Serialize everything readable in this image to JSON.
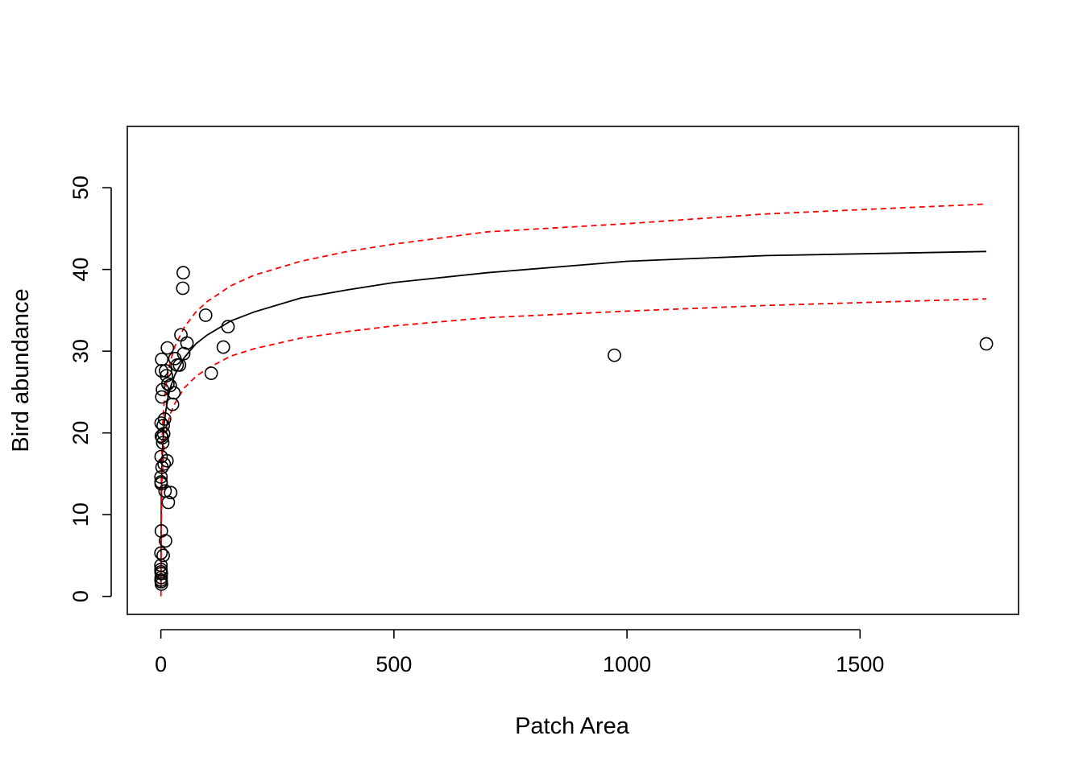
{
  "chart_data": {
    "type": "scatter",
    "title": "",
    "xlabel": "Patch Area",
    "ylabel": "Bird abundance",
    "xlim": [
      -72,
      1840
    ],
    "ylim": [
      -2.2,
      57.5
    ],
    "xticks": [
      0,
      500,
      1000,
      1500
    ],
    "xtick_labels": [
      "0",
      "500",
      "1000",
      "1500"
    ],
    "yticks": [
      0,
      10,
      20,
      30,
      40,
      50
    ],
    "ytick_labels": [
      "0",
      "10",
      "20",
      "30",
      "40",
      "50"
    ],
    "grid": false,
    "legend": "none",
    "colors": {
      "points": "#000000",
      "fit": "#000000",
      "ci": "#ff0000"
    },
    "points": [
      {
        "x": 1.5,
        "y": 27.6
      },
      {
        "x": 1.8,
        "y": 29.0
      },
      {
        "x": 2.0,
        "y": 24.4
      },
      {
        "x": 3.5,
        "y": 25.3
      },
      {
        "x": 0.5,
        "y": 21.2
      },
      {
        "x": 1.0,
        "y": 19.6
      },
      {
        "x": 3.0,
        "y": 19.4
      },
      {
        "x": 5.0,
        "y": 20.9
      },
      {
        "x": 6.0,
        "y": 19.9
      },
      {
        "x": 4.0,
        "y": 18.8
      },
      {
        "x": 8.0,
        "y": 21.7
      },
      {
        "x": 0.5,
        "y": 17.1
      },
      {
        "x": 2.5,
        "y": 15.8
      },
      {
        "x": 7.0,
        "y": 16.2
      },
      {
        "x": 0.2,
        "y": 14.6
      },
      {
        "x": 0.3,
        "y": 14.0
      },
      {
        "x": 0.5,
        "y": 13.8
      },
      {
        "x": 9.0,
        "y": 12.9
      },
      {
        "x": 13.0,
        "y": 16.6
      },
      {
        "x": 16.0,
        "y": 11.5
      },
      {
        "x": 21.0,
        "y": 12.7
      },
      {
        "x": 1.0,
        "y": 8.0
      },
      {
        "x": 10.0,
        "y": 6.8
      },
      {
        "x": 0.1,
        "y": 5.3
      },
      {
        "x": 5.0,
        "y": 5.0
      },
      {
        "x": 0.1,
        "y": 3.8
      },
      {
        "x": 0.2,
        "y": 3.3
      },
      {
        "x": 0.4,
        "y": 3.0
      },
      {
        "x": 1.0,
        "y": 2.8
      },
      {
        "x": 0.6,
        "y": 2.3
      },
      {
        "x": 0.3,
        "y": 2.0
      },
      {
        "x": 0.8,
        "y": 1.8
      },
      {
        "x": 1.2,
        "y": 1.5
      },
      {
        "x": 12.0,
        "y": 27.0
      },
      {
        "x": 10.0,
        "y": 27.6
      },
      {
        "x": 15.0,
        "y": 26.0
      },
      {
        "x": 20.0,
        "y": 25.8
      },
      {
        "x": 28.0,
        "y": 24.9
      },
      {
        "x": 25.0,
        "y": 23.5
      },
      {
        "x": 14.0,
        "y": 30.4
      },
      {
        "x": 30.0,
        "y": 29.1
      },
      {
        "x": 35.0,
        "y": 28.3
      },
      {
        "x": 40.0,
        "y": 28.3
      },
      {
        "x": 43.0,
        "y": 32.0
      },
      {
        "x": 49.0,
        "y": 29.7
      },
      {
        "x": 56.0,
        "y": 31.0
      },
      {
        "x": 48.0,
        "y": 39.6
      },
      {
        "x": 47.0,
        "y": 37.7
      },
      {
        "x": 96.0,
        "y": 34.4
      },
      {
        "x": 108.0,
        "y": 27.3
      },
      {
        "x": 134.0,
        "y": 30.5
      },
      {
        "x": 144.0,
        "y": 33.0
      },
      {
        "x": 973.0,
        "y": 29.5
      },
      {
        "x": 1771.0,
        "y": 30.9
      }
    ],
    "series": [
      {
        "style": "solid",
        "x": [
          0.1,
          0.5,
          1,
          2,
          4,
          7,
          10,
          15,
          20,
          30,
          50,
          75,
          100,
          150,
          200,
          300,
          400,
          500,
          700,
          1000,
          1300,
          1771
        ],
        "y": [
          1.0,
          8.6,
          11.9,
          15.2,
          18.5,
          21.1,
          22.5,
          24.2,
          25.5,
          27.1,
          29.2,
          30.9,
          32.0,
          33.7,
          34.8,
          36.5,
          37.5,
          38.4,
          39.6,
          41.0,
          41.7,
          42.2
        ]
      },
      {
        "style": "dashed",
        "x": [
          0.1,
          0.5,
          1,
          2,
          4,
          7,
          10,
          15,
          20,
          30,
          50,
          75,
          100,
          150,
          200,
          300,
          400,
          500,
          700,
          1000,
          1300,
          1771
        ],
        "y": [
          2.0,
          11.0,
          14.5,
          17.8,
          21.0,
          23.8,
          25.4,
          27.3,
          28.7,
          30.6,
          32.9,
          34.8,
          36.1,
          38.0,
          39.3,
          41.0,
          42.2,
          43.1,
          44.6,
          45.6,
          46.8,
          48.0
        ]
      },
      {
        "style": "dashed",
        "x": [
          0.1,
          0.5,
          1,
          2,
          4,
          7,
          10,
          15,
          20,
          30,
          50,
          75,
          100,
          150,
          200,
          300,
          400,
          500,
          700,
          1000,
          1300,
          1771
        ],
        "y": [
          0.0,
          6.2,
          9.3,
          12.6,
          16.0,
          18.4,
          19.6,
          21.1,
          22.3,
          23.6,
          25.5,
          26.9,
          27.9,
          29.4,
          30.3,
          31.6,
          32.4,
          33.1,
          34.1,
          34.9,
          35.6,
          36.4
        ]
      }
    ]
  }
}
